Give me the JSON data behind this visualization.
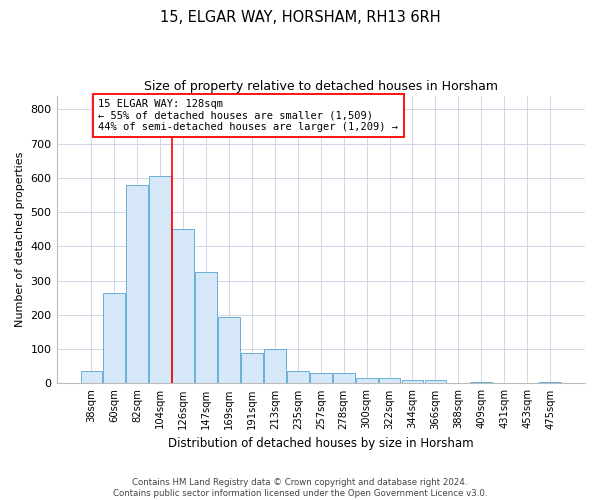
{
  "title": "15, ELGAR WAY, HORSHAM, RH13 6RH",
  "subtitle": "Size of property relative to detached houses in Horsham",
  "xlabel": "Distribution of detached houses by size in Horsham",
  "ylabel": "Number of detached properties",
  "categories": [
    "38sqm",
    "60sqm",
    "82sqm",
    "104sqm",
    "126sqm",
    "147sqm",
    "169sqm",
    "191sqm",
    "213sqm",
    "235sqm",
    "257sqm",
    "278sqm",
    "300sqm",
    "322sqm",
    "344sqm",
    "366sqm",
    "388sqm",
    "409sqm",
    "431sqm",
    "453sqm",
    "475sqm"
  ],
  "values": [
    35,
    265,
    580,
    605,
    450,
    325,
    195,
    90,
    100,
    35,
    30,
    30,
    15,
    15,
    10,
    10,
    0,
    5,
    0,
    0,
    5
  ],
  "bar_color": "#d6e8f7",
  "bar_edge_color": "#6aaed6",
  "vline_color": "red",
  "vline_x_index": 4,
  "annotation_text": "15 ELGAR WAY: 128sqm\n← 55% of detached houses are smaller (1,509)\n44% of semi-detached houses are larger (1,209) →",
  "annotation_box_color": "white",
  "annotation_box_edge_color": "red",
  "ylim": [
    0,
    840
  ],
  "yticks": [
    0,
    100,
    200,
    300,
    400,
    500,
    600,
    700,
    800
  ],
  "footer_line1": "Contains HM Land Registry data © Crown copyright and database right 2024.",
  "footer_line2": "Contains public sector information licensed under the Open Government Licence v3.0.",
  "bg_color": "#ffffff",
  "plot_bg_color": "#ffffff",
  "grid_color": "#d0d8e8"
}
